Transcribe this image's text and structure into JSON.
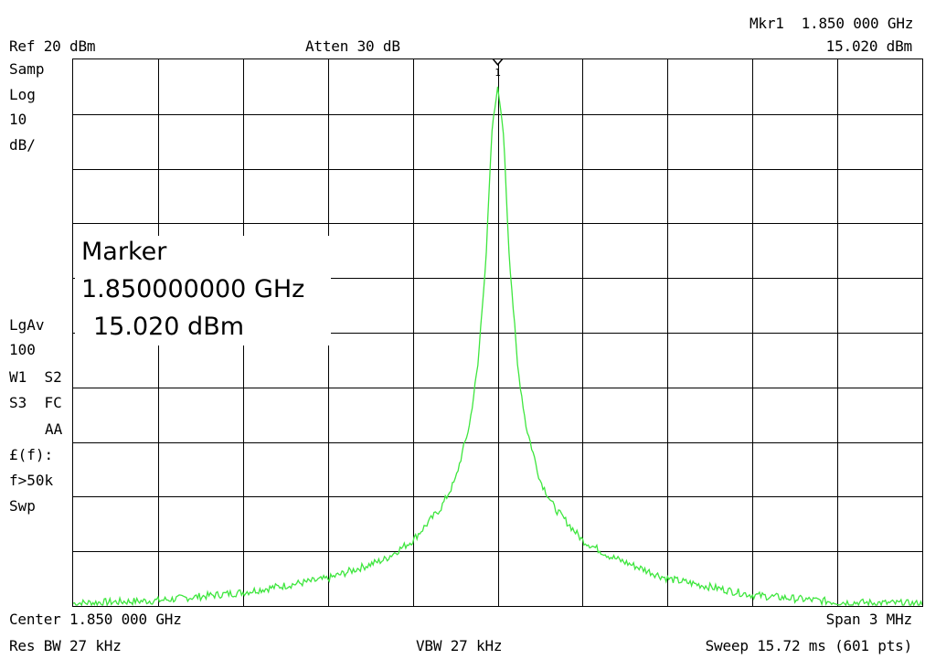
{
  "header": {
    "ref_level": "Ref 20 dBm",
    "attenuation": "Atten 30 dB",
    "marker_label": "Mkr1  1.850 000 GHz",
    "marker_amplitude": "15.020 dBm"
  },
  "left_panel": {
    "detector": "Samp",
    "scale_type": "Log",
    "scale_value": "10",
    "scale_unit": "dB/",
    "average": "LgAv",
    "average_count": "100",
    "trace_line1": "W1  S2",
    "trace_line2": "S3  FC",
    "trace_line3": "AA",
    "correction": "£(f):",
    "correction_cond": "f>50k",
    "sweep_mode": "Swp"
  },
  "marker_box": {
    "title": "Marker",
    "frequency": "1.850000000 GHz",
    "amplitude": "15.020 dBm",
    "marker_number": "1"
  },
  "footer": {
    "center": "Center 1.850 000 GHz",
    "span": "Span 3 MHz",
    "rbw": "Res BW 27 kHz",
    "vbw": "VBW 27 kHz",
    "sweep": "Sweep 15.72 ms (601 pts)"
  },
  "colors": {
    "trace": "#3ee63e",
    "grid": "#000000",
    "background": "#ffffff"
  },
  "chart_data": {
    "type": "line",
    "title": "",
    "xlabel": "",
    "ylabel": "",
    "x_unit": "GHz",
    "y_unit": "dBm",
    "xlim": [
      1.8485,
      1.8515
    ],
    "ylim": [
      -80,
      20
    ],
    "x_divisions": 10,
    "y_divisions": 10,
    "grid": true,
    "series": [
      {
        "x": [
          1.8485,
          1.8488,
          1.8491,
          1.8494,
          1.8496,
          1.8497,
          1.8498,
          1.84985,
          1.8499,
          1.84993,
          1.84996,
          1.84998,
          1.85,
          1.85002,
          1.85004,
          1.85007,
          1.8501,
          1.85015,
          1.8502,
          1.8503,
          1.8504,
          1.8506,
          1.8509,
          1.8512,
          1.8515
        ],
        "values": [
          -79.5,
          -79.0,
          -77.5,
          -75.0,
          -71.5,
          -68.0,
          -62.0,
          -57.0,
          -47.0,
          -36.0,
          -15.0,
          7.0,
          15.02,
          7.0,
          -15.0,
          -36.0,
          -47.0,
          -57.0,
          -62.0,
          -68.0,
          -71.0,
          -75.0,
          -78.0,
          -79.3,
          -79.6
        ]
      }
    ],
    "marker": {
      "x": 1.85,
      "y": 15.02
    }
  }
}
